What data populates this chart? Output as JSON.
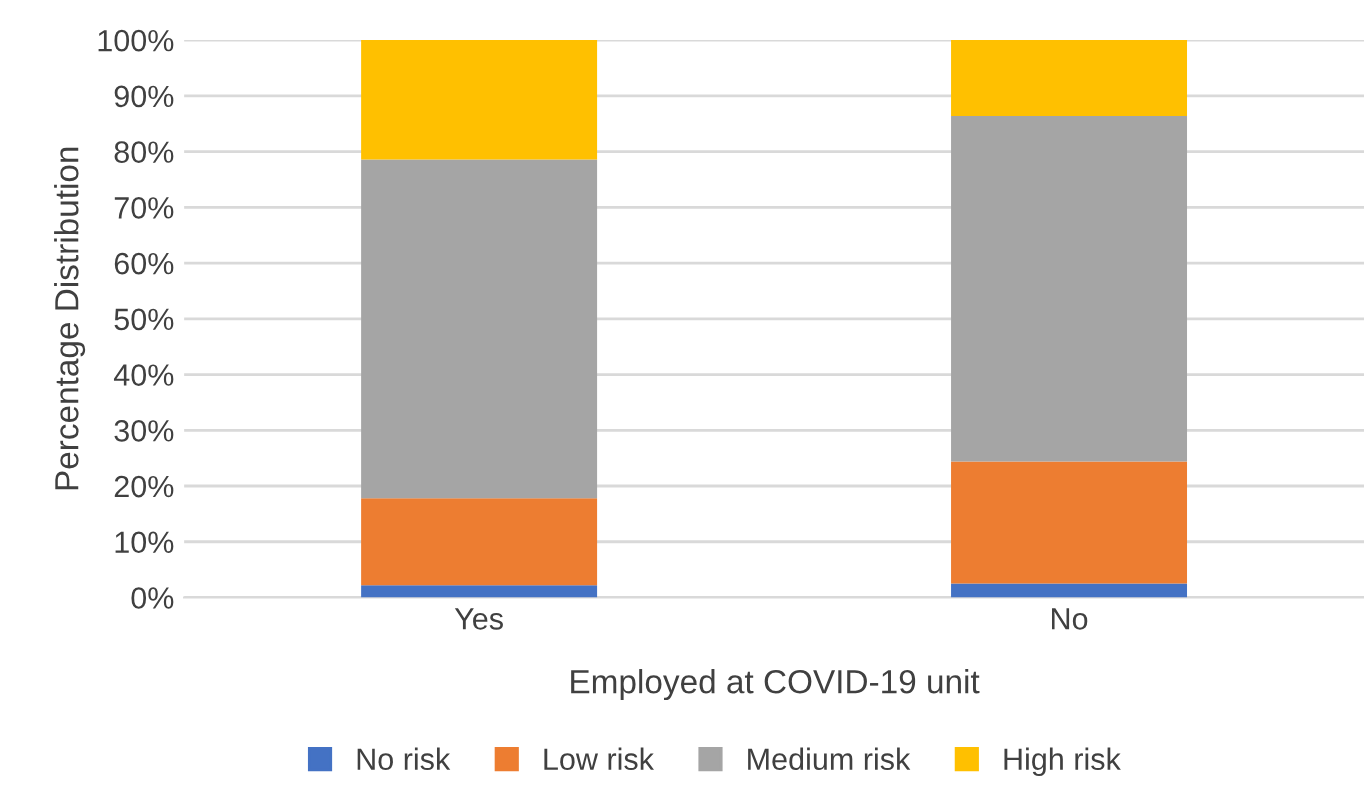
{
  "chart_data": {
    "type": "bar",
    "stacked": true,
    "xlabel": "Employed at COVID-19 unit",
    "ylabel": "Percentage Distribution",
    "categories": [
      "Yes",
      "No"
    ],
    "series": [
      {
        "name": "No risk",
        "color": "#4472c4",
        "values": [
          2.2,
          2.5
        ]
      },
      {
        "name": "Low risk",
        "color": "#ed7d31",
        "values": [
          15.6,
          21.9
        ]
      },
      {
        "name": "Medium risk",
        "color": "#a5a5a5",
        "values": [
          60.8,
          62.0
        ]
      },
      {
        "name": "High risk",
        "color": "#ffc000",
        "values": [
          21.4,
          13.6
        ]
      }
    ],
    "ylim": [
      0,
      100
    ],
    "yticks": [
      {
        "value": 0,
        "label": "0%"
      },
      {
        "value": 10,
        "label": "10%"
      },
      {
        "value": 20,
        "label": "20%"
      },
      {
        "value": 30,
        "label": "30%"
      },
      {
        "value": 40,
        "label": "40%"
      },
      {
        "value": 50,
        "label": "50%"
      },
      {
        "value": 60,
        "label": "60%"
      },
      {
        "value": 70,
        "label": "70%"
      },
      {
        "value": 80,
        "label": "80%"
      },
      {
        "value": 90,
        "label": "90%"
      },
      {
        "value": 100,
        "label": "100%"
      }
    ],
    "grid": "y",
    "legend": "bottom"
  }
}
